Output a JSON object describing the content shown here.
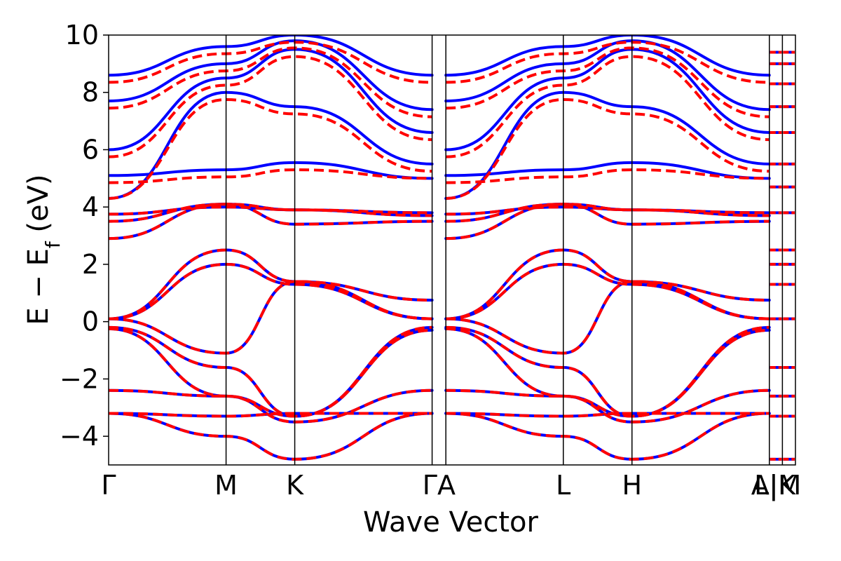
{
  "chart_data": {
    "type": "line",
    "xlabel": "Wave Vector",
    "ylabel_main": "E − E",
    "ylabel_sub": "f",
    "ylabel_unit": " (eV)",
    "ylim": [
      -5,
      10
    ],
    "yticks": [
      -4,
      -2,
      0,
      2,
      4,
      6,
      8,
      10
    ],
    "ytick_labels": [
      "−4",
      "−2",
      "0",
      "2",
      "4",
      "6",
      "8",
      "10"
    ],
    "kpath": [
      {
        "label": "Γ",
        "k": 0.0
      },
      {
        "label": "M",
        "k": 0.171
      },
      {
        "label": "K",
        "k": 0.271
      },
      {
        "label": "Γ",
        "k": 0.471
      },
      {
        "label": "A",
        "k": 0.491
      },
      {
        "label": "L",
        "k": 0.662
      },
      {
        "label": "H",
        "k": 0.762
      },
      {
        "label": "A",
        "k": 0.962
      },
      {
        "label": "M",
        "k": 0.981
      },
      {
        "label": "L",
        "k": 1.0
      }
    ],
    "xtick_labels": [
      "Γ",
      "M",
      "K",
      "ΓA",
      "L",
      "H",
      "A|M",
      "L|K"
    ],
    "grid": false,
    "series": [
      {
        "color": "#0000ff",
        "style": "solid"
      },
      {
        "color": "#ff0000",
        "style": "dashed"
      }
    ],
    "bands_valence_conduction": [
      {
        "pts": [
          [
            0.0,
            0.1
          ],
          [
            0.171,
            2.5
          ],
          [
            0.271,
            1.4
          ],
          [
            0.471,
            0.1
          ]
        ]
      },
      {
        "pts": [
          [
            0.0,
            0.1
          ],
          [
            0.171,
            2.0
          ],
          [
            0.271,
            1.3
          ],
          [
            0.471,
            0.1
          ]
        ]
      },
      {
        "pts": [
          [
            0.0,
            0.1
          ],
          [
            0.171,
            -1.1
          ],
          [
            0.271,
            1.4
          ],
          [
            0.471,
            0.75
          ]
        ]
      },
      {
        "pts": [
          [
            0.0,
            -0.2
          ],
          [
            0.171,
            -1.6
          ],
          [
            0.271,
            -3.3
          ],
          [
            0.471,
            -0.2
          ]
        ]
      },
      {
        "pts": [
          [
            0.0,
            -0.25
          ],
          [
            0.171,
            -2.6
          ],
          [
            0.271,
            -3.3
          ],
          [
            0.471,
            -0.3
          ]
        ]
      },
      {
        "pts": [
          [
            0.0,
            -2.4
          ],
          [
            0.171,
            -2.6
          ],
          [
            0.271,
            -3.5
          ],
          [
            0.471,
            -2.4
          ]
        ]
      },
      {
        "pts": [
          [
            0.0,
            -3.2
          ],
          [
            0.171,
            -3.3
          ],
          [
            0.271,
            -3.2
          ],
          [
            0.471,
            -3.2
          ]
        ]
      },
      {
        "pts": [
          [
            0.0,
            -3.2
          ],
          [
            0.171,
            -4.0
          ],
          [
            0.271,
            -4.8
          ],
          [
            0.471,
            -3.2
          ]
        ]
      },
      {
        "pts": [
          [
            0.0,
            2.9
          ],
          [
            0.171,
            4.1
          ],
          [
            0.271,
            3.9
          ],
          [
            0.471,
            3.7
          ]
        ]
      },
      {
        "pts": [
          [
            0.0,
            3.75
          ],
          [
            0.171,
            4.0
          ],
          [
            0.271,
            3.9
          ],
          [
            0.471,
            3.8
          ]
        ]
      },
      {
        "pts": [
          [
            0.0,
            3.5
          ],
          [
            0.171,
            4.1
          ],
          [
            0.271,
            3.4
          ],
          [
            0.471,
            3.5
          ]
        ]
      },
      {
        "pts": [
          [
            0.0,
            5.1
          ],
          [
            0.171,
            5.3
          ],
          [
            0.271,
            5.55
          ],
          [
            0.471,
            5.0
          ]
        ]
      },
      {
        "pts": [
          [
            0.0,
            4.3
          ],
          [
            0.171,
            8.0
          ],
          [
            0.271,
            7.5
          ],
          [
            0.471,
            5.5
          ]
        ]
      },
      {
        "pts": [
          [
            0.0,
            6.0
          ],
          [
            0.171,
            8.5
          ],
          [
            0.271,
            9.5
          ],
          [
            0.471,
            6.6
          ]
        ]
      },
      {
        "pts": [
          [
            0.0,
            7.7
          ],
          [
            0.171,
            9.0
          ],
          [
            0.271,
            9.8
          ],
          [
            0.471,
            7.4
          ]
        ]
      },
      {
        "pts": [
          [
            0.0,
            8.6
          ],
          [
            0.171,
            9.6
          ],
          [
            0.271,
            10.0
          ],
          [
            0.471,
            8.6
          ]
        ]
      }
    ]
  }
}
